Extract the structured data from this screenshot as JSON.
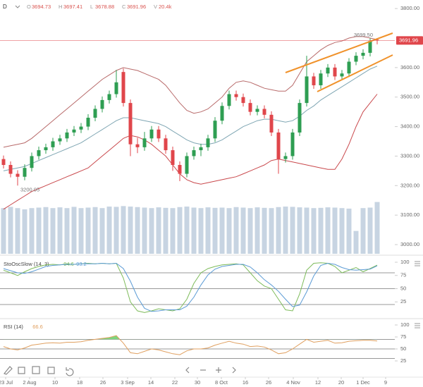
{
  "header": {
    "symbol": "D",
    "open_label": "O",
    "high_label": "H",
    "low_label": "L",
    "close_label": "C",
    "volume_label": "V",
    "volume": "20.4k"
  },
  "chart_data": [
    {
      "type": "candlestick",
      "open": [
        3290,
        3270,
        3240,
        3230,
        3260,
        3300,
        3320,
        3330,
        3350,
        3360,
        3380,
        3390,
        3400,
        3430,
        3460,
        3490,
        3510,
        3585,
        3480,
        3340,
        3330,
        3360,
        3390,
        3360,
        3320,
        3270,
        3240,
        3300,
        3320,
        3330,
        3360,
        3420,
        3470,
        3510,
        3500,
        3480,
        3450,
        3460,
        3440,
        3380,
        3290,
        3300,
        3380,
        3480,
        3570,
        3540,
        3580,
        3600,
        3570,
        3580,
        3620,
        3640,
        3650,
        3694.73
      ],
      "high": [
        3302,
        3282,
        3252,
        3272,
        3312,
        3332,
        3342,
        3362,
        3372,
        3392,
        3402,
        3412,
        3442,
        3472,
        3502,
        3522,
        3592,
        3597,
        3492,
        3362,
        3382,
        3402,
        3402,
        3372,
        3332,
        3282,
        3312,
        3332,
        3342,
        3372,
        3432,
        3482,
        3522,
        3522,
        3512,
        3492,
        3472,
        3472,
        3452,
        3392,
        3312,
        3392,
        3492,
        3640,
        3582,
        3592,
        3612,
        3612,
        3592,
        3632,
        3652,
        3662,
        3699.5,
        3697.41
      ],
      "low": [
        3258,
        3228,
        3200.05,
        3218,
        3248,
        3288,
        3308,
        3318,
        3338,
        3348,
        3368,
        3378,
        3388,
        3418,
        3448,
        3478,
        3498,
        3468,
        3300,
        3310,
        3318,
        3348,
        3348,
        3308,
        3250,
        3215,
        3228,
        3288,
        3300,
        3318,
        3348,
        3408,
        3458,
        3488,
        3468,
        3438,
        3438,
        3428,
        3368,
        3240,
        3278,
        3288,
        3368,
        3468,
        3528,
        3528,
        3568,
        3558,
        3558,
        3568,
        3608,
        3628,
        3638,
        3678.88
      ],
      "close": [
        3270,
        3240,
        3230,
        3260,
        3300,
        3320,
        3330,
        3350,
        3360,
        3380,
        3390,
        3400,
        3430,
        3460,
        3490,
        3510,
        3550,
        3480,
        3340,
        3330,
        3360,
        3390,
        3360,
        3320,
        3270,
        3240,
        3300,
        3320,
        3330,
        3360,
        3420,
        3470,
        3510,
        3500,
        3480,
        3450,
        3460,
        3440,
        3380,
        3290,
        3300,
        3380,
        3480,
        3570,
        3540,
        3580,
        3600,
        3570,
        3580,
        3620,
        3640,
        3650,
        3690,
        3691.96
      ],
      "colors": {
        "up": "#2e9e52",
        "down": "#e0464b"
      },
      "bands": [
        {
          "color": "#b86a6a",
          "values": [
            3330,
            3335,
            3340,
            3345,
            3360,
            3380,
            3400,
            3420,
            3440,
            3460,
            3480,
            3500,
            3520,
            3540,
            3560,
            3575,
            3590,
            3600,
            3595,
            3590,
            3580,
            3570,
            3560,
            3540,
            3510,
            3480,
            3455,
            3445,
            3450,
            3460,
            3480,
            3500,
            3530,
            3550,
            3555,
            3550,
            3540,
            3530,
            3525,
            3520,
            3520,
            3540,
            3580,
            3620,
            3640,
            3660,
            3675,
            3685,
            3690,
            3700,
            3705,
            3705,
            3700,
            3695
          ]
        },
        {
          "color": "#7fa6b3",
          "values": [
            3250,
            3255,
            3260,
            3265,
            3275,
            3285,
            3295,
            3305,
            3315,
            3325,
            3335,
            3345,
            3360,
            3375,
            3390,
            3405,
            3420,
            3430,
            3430,
            3425,
            3420,
            3415,
            3410,
            3400,
            3385,
            3370,
            3355,
            3345,
            3340,
            3340,
            3345,
            3355,
            3370,
            3385,
            3400,
            3410,
            3420,
            3425,
            3425,
            3420,
            3415,
            3420,
            3435,
            3455,
            3470,
            3490,
            3505,
            3520,
            3535,
            3550,
            3565,
            3580,
            3595,
            3605
          ]
        },
        {
          "color": "#c9484c",
          "values": [
            3120,
            3135,
            3150,
            3165,
            3180,
            3190,
            3200,
            3210,
            3220,
            3230,
            3240,
            3250,
            3260,
            3280,
            3300,
            3320,
            3340,
            3360,
            3370,
            3365,
            3355,
            3340,
            3320,
            3300,
            3270,
            3240,
            3220,
            3210,
            3205,
            3210,
            3215,
            3220,
            3225,
            3230,
            3240,
            3250,
            3260,
            3270,
            3285,
            3290,
            3285,
            3280,
            3275,
            3270,
            3265,
            3260,
            3255,
            3255,
            3290,
            3340,
            3400,
            3450,
            3480,
            3510
          ]
        }
      ],
      "volume": {
        "color": "#c7d4e2",
        "values": [
          18,
          18.5,
          18,
          17.5,
          18,
          18.2,
          18.4,
          18,
          18.3,
          18,
          18.5,
          18,
          18.2,
          18.4,
          18,
          18.6,
          18.5,
          18.8,
          18.6,
          18.4,
          18.2,
          18,
          18.3,
          18.1,
          18,
          18.4,
          18.6,
          18.2,
          18,
          18.3,
          18.1,
          18.2,
          18,
          18.4,
          18.2,
          18,
          18.3,
          18.1,
          18,
          18.4,
          18.6,
          18.5,
          18.3,
          18.2,
          18,
          18.1,
          18.3,
          18.2,
          18,
          17.8,
          9,
          18,
          18.2,
          20.4
        ],
        "y2lim": [
          0,
          100
        ]
      },
      "annotations": [
        {
          "label": "3699.50",
          "x": 52,
          "value": 3699.5
        },
        {
          "label": "3200.05",
          "x": 2,
          "value": 3200.05
        }
      ],
      "last_price_color": "#e0464b",
      "channel_color": "#f0922b",
      "ylim": [
        2969,
        3829
      ],
      "yticks": [
        {
          "value": 3800,
          "label": "3800.00"
        },
        {
          "value": 3600,
          "label": "3600.00"
        },
        {
          "value": 3500,
          "label": "3500.00"
        },
        {
          "value": 3400,
          "label": "3400.00"
        },
        {
          "value": 3300,
          "label": "3300.00"
        },
        {
          "value": 3200,
          "label": "3200.00"
        },
        {
          "value": 3100,
          "label": "3100.00"
        },
        {
          "value": 3000,
          "label": "3000.00"
        }
      ],
      "xlim": [
        -0.5,
        55.5
      ],
      "xticks": [
        {
          "value": 0.3,
          "label": "23 Jul"
        },
        {
          "value": 3.7,
          "label": "2 Aug"
        },
        {
          "value": 7.3,
          "label": "10"
        },
        {
          "value": 10.8,
          "label": "18"
        },
        {
          "value": 14.1,
          "label": "26"
        },
        {
          "value": 17.6,
          "label": "3 Sep"
        },
        {
          "value": 20.9,
          "label": "14"
        },
        {
          "value": 24.3,
          "label": "22"
        },
        {
          "value": 27.5,
          "label": "30"
        },
        {
          "value": 30.9,
          "label": "8 Oct"
        },
        {
          "value": 34.3,
          "label": "16"
        },
        {
          "value": 37.6,
          "label": "26"
        },
        {
          "value": 41.1,
          "label": "4 Nov"
        },
        {
          "value": 44.6,
          "label": "12"
        },
        {
          "value": 47.9,
          "label": "20"
        },
        {
          "value": 51,
          "label": "1 Dec"
        },
        {
          "value": 54.2,
          "label": "9"
        }
      ]
    },
    {
      "type": "line",
      "title": "StoOscSlow (14, 3)",
      "series": [
        {
          "color": "#7dbb5a",
          "values": [
            85,
            80,
            75,
            82,
            88,
            92,
            95,
            96,
            95,
            97,
            96,
            97,
            98,
            97,
            98,
            97,
            98,
            70,
            25,
            8,
            5,
            8,
            12,
            10,
            8,
            12,
            30,
            60,
            80,
            88,
            92,
            95,
            96,
            97,
            95,
            80,
            65,
            55,
            50,
            30,
            10,
            8,
            40,
            85,
            98,
            99,
            98,
            92,
            80,
            85,
            90,
            82,
            88,
            94.6
          ]
        },
        {
          "color": "#5b9bd5",
          "values": [
            88,
            84,
            80,
            79,
            82,
            87,
            92,
            94,
            95,
            96,
            96,
            97,
            97,
            97,
            98,
            97,
            98,
            88,
            64,
            34,
            13,
            7,
            8,
            10,
            10,
            10,
            17,
            34,
            57,
            76,
            87,
            92,
            94,
            96,
            96,
            91,
            80,
            67,
            57,
            45,
            30,
            16,
            19,
            44,
            74,
            94,
            98,
            96,
            90,
            86,
            85,
            86,
            87,
            93.2
          ]
        }
      ],
      "ylim": [
        0,
        100
      ],
      "yticks": [
        100,
        75,
        50,
        25
      ],
      "levels": [
        80,
        50,
        20
      ],
      "xlim": [
        -0.5,
        55.5
      ]
    },
    {
      "type": "line",
      "title": "RSI (14)",
      "series": [
        {
          "color": "#e0a060",
          "values": [
            55,
            50,
            48,
            52,
            58,
            60,
            62,
            63,
            62,
            64,
            64,
            65,
            68,
            70,
            72,
            74,
            78,
            62,
            42,
            40,
            45,
            50,
            48,
            44,
            40,
            38,
            46,
            50,
            50,
            52,
            58,
            62,
            66,
            62,
            60,
            55,
            56,
            54,
            48,
            40,
            42,
            50,
            60,
            70,
            64,
            66,
            68,
            62,
            63,
            66,
            67,
            68,
            68,
            66.6
          ]
        }
      ],
      "fill_color": "#7ed67e",
      "ylim": [
        0,
        100
      ],
      "yticks": [
        100,
        75,
        50,
        25
      ],
      "levels": [
        70,
        50,
        30
      ],
      "xlim": [
        -0.5,
        55.5
      ]
    }
  ]
}
